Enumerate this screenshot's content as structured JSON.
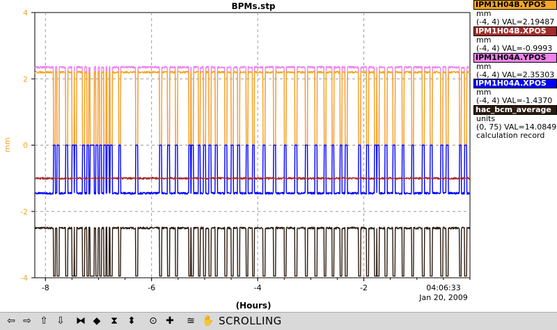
{
  "window_title": "BPMs.stp",
  "y_axis": {
    "label": "mm",
    "ticks": [
      "4",
      "2",
      "0",
      "-2",
      "-4"
    ],
    "range": [
      -4,
      4
    ]
  },
  "x_axis": {
    "label": "(Hours)",
    "ticks": [
      "-8",
      "-6",
      "-4",
      "-2"
    ],
    "range": [
      -8.2,
      0
    ]
  },
  "time_label": "04:06:33",
  "date_label": "Jan 20, 2009",
  "legend": [
    {
      "name": "IPM1H04B.YPOS",
      "units": "mm",
      "range_val": "(-4, 4) VAL=2.19487",
      "color": "#f5a623"
    },
    {
      "name": "IPM1H04B.XPOS",
      "units": "mm",
      "range_val": "(-4, 4) VAL=-0.9993",
      "color": "#a52a2a"
    },
    {
      "name": "IPM1H04A.YPOS",
      "units": "mm",
      "range_val": "(-4, 4) VAL=2.35303",
      "color": "#ee82ee"
    },
    {
      "name": "IPM1H04A.XPOS",
      "units": "mm",
      "range_val": "(-4, 4) VAL=-1.4370",
      "color": "#0000ff"
    },
    {
      "name": "hac_bcm_average",
      "units": "units",
      "range_val": "(0, 75) VAL=14.0849",
      "extra": "calculation record",
      "color": "#2b1a0e"
    }
  ],
  "chart_data": {
    "type": "line",
    "title": "BPMs.stp",
    "xlabel": "(Hours)",
    "ylabel": "mm",
    "xlim": [
      -8.2,
      0
    ],
    "ylim": [
      -4,
      4
    ],
    "grid": true,
    "legend_position": "right",
    "beam_off_hours": [
      -7.85,
      -7.78,
      -7.62,
      -7.5,
      -7.45,
      -7.3,
      -7.22,
      -7.16,
      -7.12,
      -7.05,
      -6.98,
      -6.9,
      -6.84,
      -6.78,
      -6.62,
      -6.3,
      -5.85,
      -5.7,
      -5.55,
      -5.3,
      -5.25,
      -5.12,
      -5.02,
      -4.92,
      -4.8,
      -4.62,
      -4.5,
      -4.38,
      -4.22,
      -4.1,
      -3.9,
      -3.7,
      -3.5,
      -3.3,
      -3.1,
      -2.92,
      -2.75,
      -2.6,
      -2.45,
      -2.35,
      -2.1,
      -1.95,
      -1.8,
      -1.75,
      -1.6,
      -1.45,
      -1.28,
      -1.1,
      -0.9,
      -0.75,
      -0.55,
      -0.45,
      -0.2,
      -0.1
    ],
    "series": [
      {
        "name": "IPM1H04B.YPOS",
        "color": "#f5a623",
        "baseline": 2.2,
        "beam_off_value": 0.0
      },
      {
        "name": "IPM1H04B.XPOS",
        "color": "#a52a2a",
        "baseline": -1.0,
        "beam_off_value": -1.0
      },
      {
        "name": "IPM1H04A.YPOS",
        "color": "#ee82ee",
        "baseline": 2.35,
        "beam_off_value": 0.0
      },
      {
        "name": "IPM1H04A.XPOS",
        "color": "#0000ff",
        "baseline": -1.45,
        "beam_off_value": 0.0
      },
      {
        "name": "hac_bcm_average",
        "color": "#2b1a0e",
        "baseline": -2.5,
        "beam_off_value": -3.95
      }
    ]
  },
  "toolbar": {
    "status": "SCROLLING",
    "buttons": [
      {
        "name": "scroll-left-button",
        "glyph": "⇦"
      },
      {
        "name": "scroll-right-button",
        "glyph": "⇨"
      },
      {
        "name": "scroll-up-button",
        "glyph": "⇧"
      },
      {
        "name": "scroll-down-button",
        "glyph": "⇩"
      },
      {
        "name": "compress-horizontal-button",
        "glyph": "⧓"
      },
      {
        "name": "expand-horizontal-button",
        "glyph": "◆"
      },
      {
        "name": "compress-vertical-button",
        "glyph": "⧗"
      },
      {
        "name": "expand-vertical-button",
        "glyph": "⬍"
      },
      {
        "name": "zoom-box-button",
        "glyph": "⊙"
      },
      {
        "name": "cursor-button",
        "glyph": "✚"
      },
      {
        "name": "autoscale-button",
        "glyph": "≊"
      },
      {
        "name": "hand-button",
        "glyph": "✋"
      }
    ]
  }
}
